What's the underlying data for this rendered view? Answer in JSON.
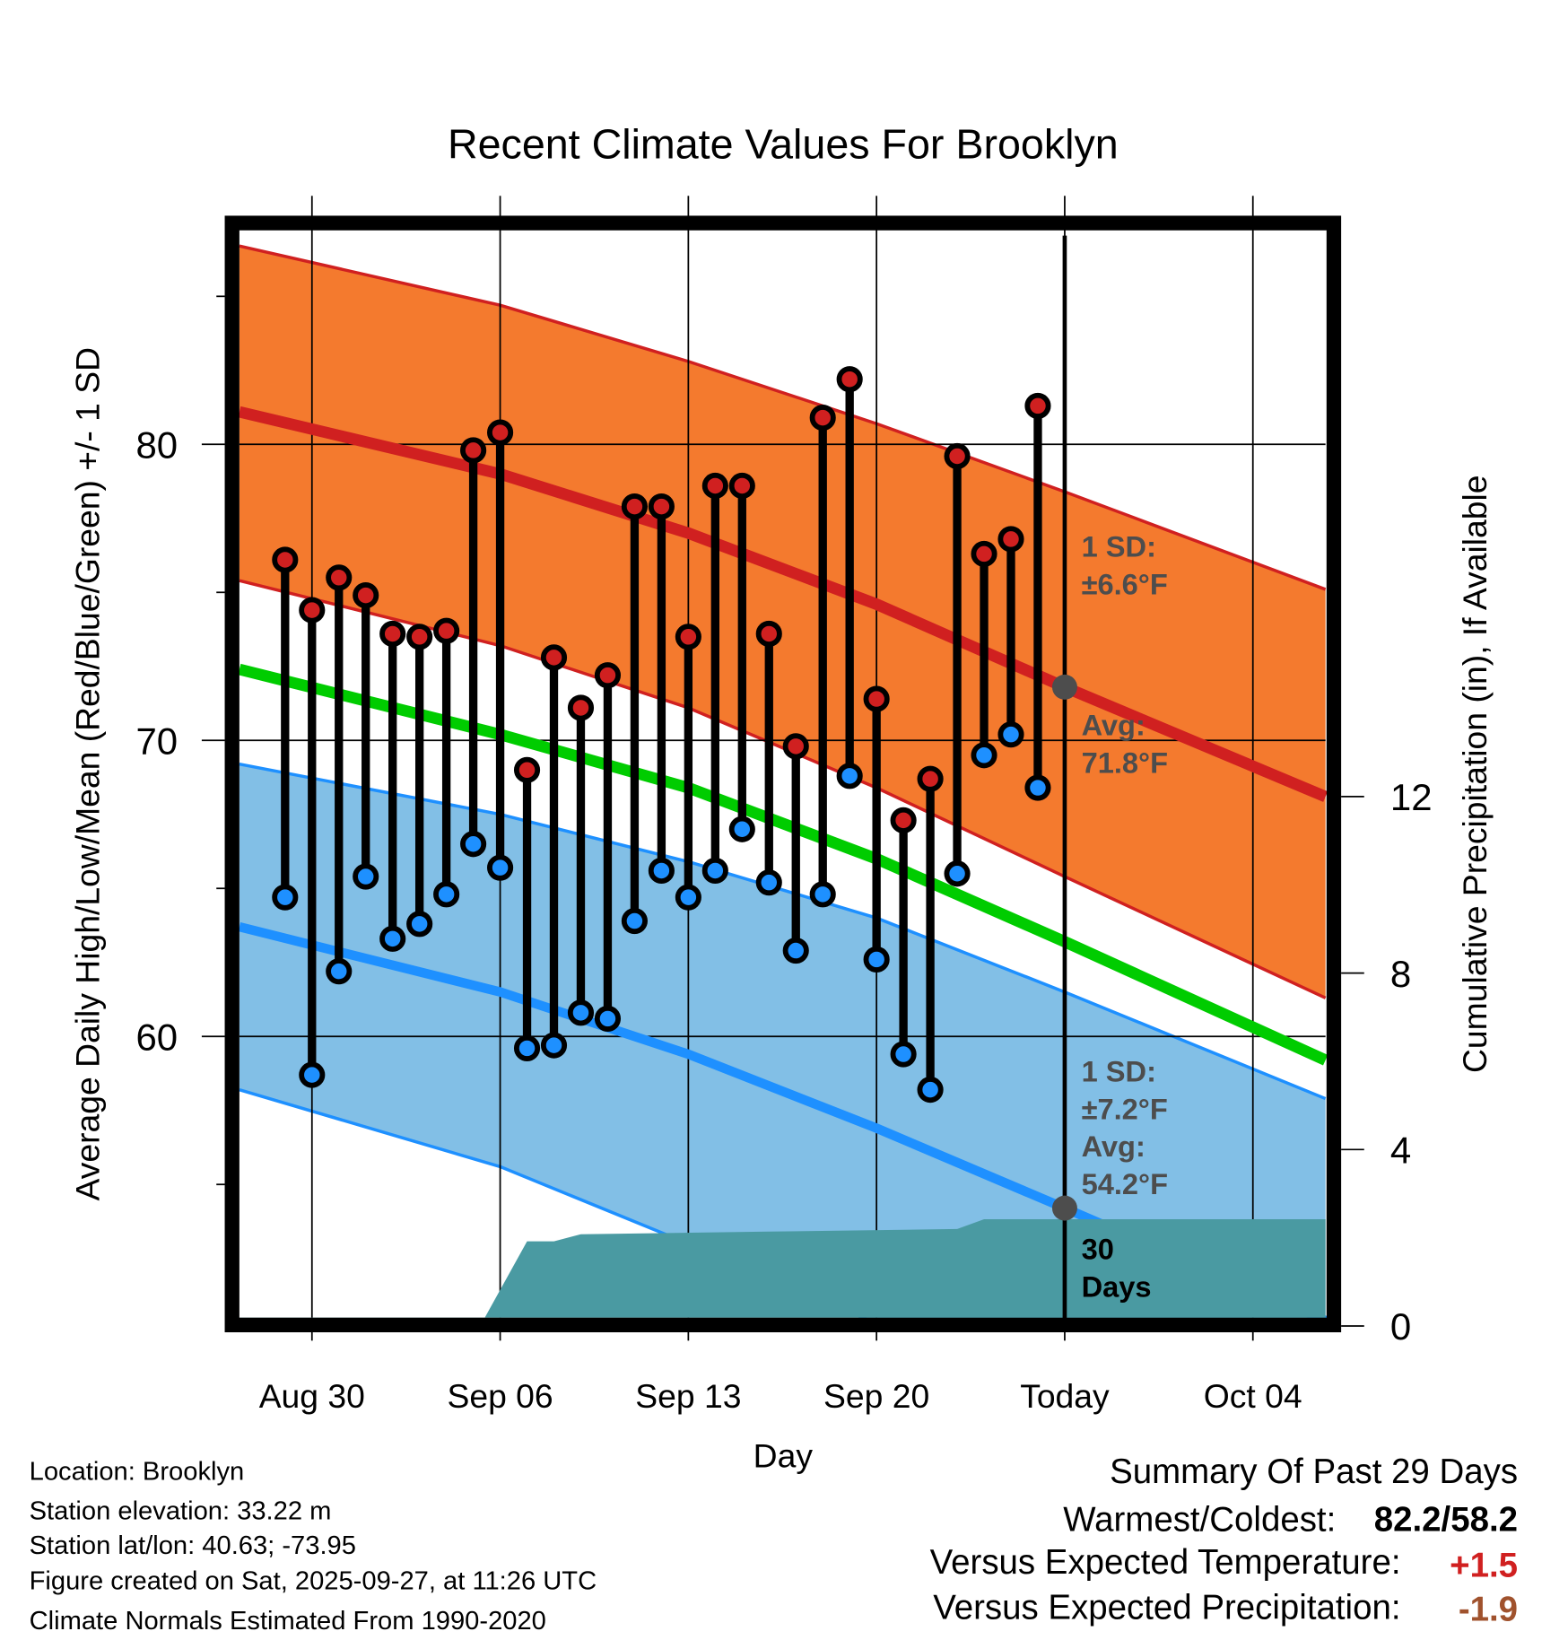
{
  "chart_data": {
    "type": "line",
    "title": "Recent Climate Values For Brooklyn",
    "xlabel": "Day",
    "ylabel": "Average Daily High/Low/Mean (Red/Blue/Green) +/- 1 SD",
    "y2label": "Cumulative Precipitation (in), If Available",
    "x_reference": "Aug 30 = day 0",
    "xlim": [
      -2.7,
      37.7
    ],
    "ylim": [
      50.5,
      87.3
    ],
    "y2lim": [
      0,
      24.9
    ],
    "x_ticks": [
      {
        "day": 0,
        "label": "Aug 30"
      },
      {
        "day": 7,
        "label": "Sep 06"
      },
      {
        "day": 14,
        "label": "Sep 13"
      },
      {
        "day": 21,
        "label": "Sep 20"
      },
      {
        "day": 28,
        "label": "Today"
      },
      {
        "day": 35,
        "label": "Oct 04"
      }
    ],
    "y_ticks": [
      {
        "v": 60,
        "label": "60"
      },
      {
        "v": 70,
        "label": "70"
      },
      {
        "v": 80,
        "label": "80"
      }
    ],
    "y_minor_ticks": [
      55,
      65,
      75,
      85
    ],
    "y2_ticks": [
      {
        "v": 0,
        "label": "0"
      },
      {
        "v": 4,
        "label": "4"
      },
      {
        "v": 8,
        "label": "8"
      },
      {
        "v": 12,
        "label": "12"
      }
    ],
    "grid": true,
    "today_day": 28,
    "normals": {
      "days": [
        -2.7,
        7,
        14,
        21,
        28,
        37.7
      ],
      "high_upper_sd": [
        86.7,
        84.7,
        82.8,
        80.7,
        78.4,
        75.1
      ],
      "high_mean": [
        81.1,
        79.0,
        77.0,
        74.6,
        71.8,
        68.1
      ],
      "high_lower_sd": [
        75.4,
        73.2,
        71.1,
        68.4,
        65.4,
        61.3
      ],
      "daily_mean": [
        72.4,
        70.2,
        68.4,
        66.0,
        63.2,
        59.2
      ],
      "low_upper_sd": [
        69.2,
        67.5,
        65.9,
        64.0,
        61.5,
        57.9
      ],
      "low_mean": [
        63.7,
        61.5,
        59.4,
        56.9,
        54.2,
        50.4
      ],
      "low_lower_sd": [
        58.2,
        55.6,
        53.0,
        50.3,
        47.5,
        44.3
      ]
    },
    "observations": {
      "start_day": -1,
      "highs": [
        76.1,
        74.4,
        75.5,
        74.9,
        73.6,
        73.5,
        73.7,
        79.8,
        80.4,
        69.0,
        72.8,
        71.1,
        72.2,
        77.9,
        77.9,
        73.5,
        78.6,
        78.6,
        73.6,
        69.8,
        80.9,
        82.2,
        71.4,
        67.3,
        68.7,
        79.6,
        76.3,
        76.8,
        81.3
      ],
      "lows": [
        64.7,
        58.7,
        62.2,
        65.4,
        63.3,
        63.8,
        64.8,
        66.5,
        65.7,
        59.6,
        59.7,
        60.8,
        60.6,
        63.9,
        65.6,
        64.7,
        65.6,
        67.0,
        65.2,
        62.9,
        64.8,
        68.8,
        62.6,
        59.4,
        58.2,
        65.5,
        69.5,
        70.2,
        68.4
      ]
    },
    "precipitation": {
      "days": [
        -2.7,
        6.0,
        6.3,
        8.0,
        9.0,
        10.0,
        17.0,
        24.0,
        25.0,
        37.7
      ],
      "cumulative_in": [
        0,
        0,
        0.05,
        1.92,
        1.92,
        2.08,
        2.14,
        2.2,
        2.42,
        2.42
      ]
    },
    "annotations": {
      "high_sd": [
        "1 SD:",
        "±6.6°F"
      ],
      "high_avg": [
        "Avg:",
        "71.8°F"
      ],
      "low_sd": [
        "1 SD:",
        "±7.2°F"
      ],
      "low_avg": [
        "Avg:",
        "54.2°F"
      ],
      "precip_period": [
        "30",
        "Days"
      ]
    },
    "colors": {
      "high_band": "#f47a2e",
      "high_line": "#d02020",
      "low_band": "#82bfe6",
      "low_line": "#1e90ff",
      "mean_line": "#00cc00",
      "precip": "#4a9aa2",
      "annotation": "#4d4d4d"
    }
  },
  "footer_left": [
    "Location: Brooklyn",
    "Station elevation: 33.22 m",
    "Station lat/lon: 40.63; -73.95",
    "Figure created on Sat, 2025-09-27, at 11:26 UTC",
    "Climate Normals Estimated From 1990-2020"
  ],
  "summary": {
    "title": "Summary Of Past 29 Days",
    "warmest_coldest_label": "Warmest/Coldest:",
    "warmest_coldest_value": "82.2/58.2",
    "temp_label": "Versus Expected Temperature:",
    "temp_value": "+1.5",
    "precip_label": "Versus Expected Precipitation:",
    "precip_value": "-1.9",
    "temp_color": "#d02020",
    "precip_color": "#a0522d"
  }
}
